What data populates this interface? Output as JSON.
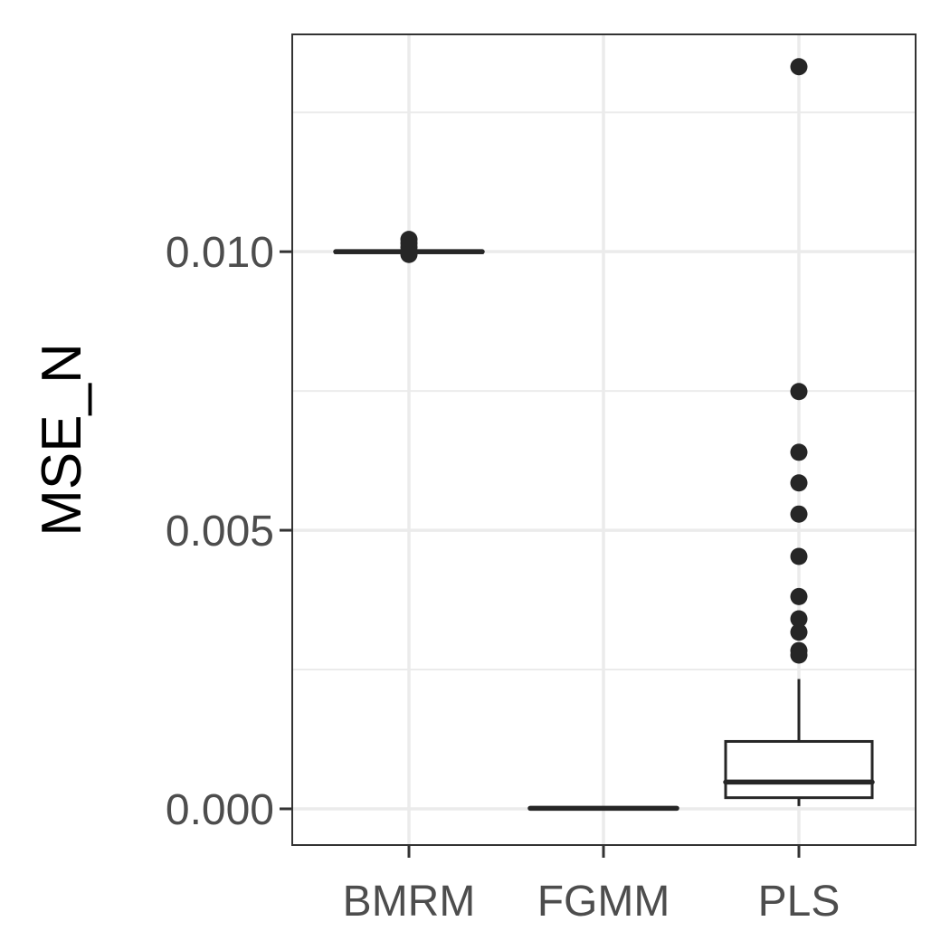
{
  "chart_data": {
    "type": "box",
    "title": "",
    "xlabel": "",
    "ylabel": "MSE_N",
    "ylim": [
      -0.00065,
      0.0139
    ],
    "yticks": [
      {
        "value": 0.0,
        "label": "0.000"
      },
      {
        "value": 0.005,
        "label": "0.005"
      },
      {
        "value": 0.01,
        "label": "0.010"
      }
    ],
    "y_minor_gridlines": [
      0.0025,
      0.0075,
      0.0125
    ],
    "grid": true,
    "colors": {
      "box": "#262626",
      "grid": "#ebebeb",
      "panel_border": "#333333",
      "outlier": "#262626"
    },
    "categories": [
      "BMRM",
      "FGMM",
      "PLS"
    ],
    "boxes": [
      {
        "category": "BMRM",
        "whisker_low": 0.00999,
        "q1": 0.009995,
        "median": 0.01,
        "q3": 0.010005,
        "whisker_high": 0.01001,
        "outliers": [
          0.01022,
          0.01015,
          0.01008,
          0.00995
        ]
      },
      {
        "category": "FGMM",
        "whisker_low": 0.0,
        "q1": 0.0,
        "median": 1e-05,
        "q3": 2e-05,
        "whisker_high": 3e-05,
        "outliers": []
      },
      {
        "category": "PLS",
        "whisker_low": 5e-05,
        "q1": 0.0002,
        "median": 0.00048,
        "q3": 0.00121,
        "whisker_high": 0.00233,
        "outliers": [
          0.01332,
          0.00749,
          0.0064,
          0.00585,
          0.00529,
          0.00453,
          0.00381,
          0.00341,
          0.00317,
          0.00284,
          0.00276
        ]
      }
    ]
  }
}
